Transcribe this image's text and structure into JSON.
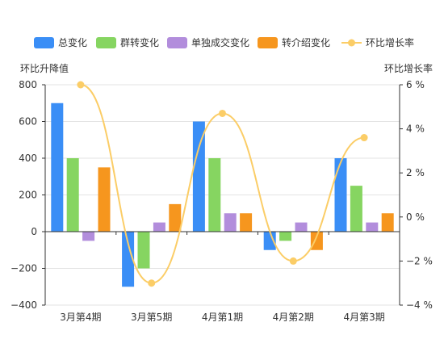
{
  "chart_data": {
    "type": "bar",
    "categories": [
      "3月第4期",
      "3月第5期",
      "4月第1期",
      "4月第2期",
      "4月第3期"
    ],
    "series": [
      {
        "name": "总变化",
        "type": "bar",
        "axis": "left",
        "color": "#3a8ef6",
        "values": [
          700,
          -300,
          600,
          -100,
          400
        ]
      },
      {
        "name": "群转变化",
        "type": "bar",
        "axis": "left",
        "color": "#86d561",
        "values": [
          400,
          -200,
          400,
          -50,
          250
        ]
      },
      {
        "name": "单独成交变化",
        "type": "bar",
        "axis": "left",
        "color": "#b28ddc",
        "values": [
          -50,
          50,
          100,
          50,
          50
        ]
      },
      {
        "name": "转介绍变化",
        "type": "bar",
        "axis": "left",
        "color": "#f6961e",
        "values": [
          350,
          150,
          100,
          -100,
          100
        ]
      },
      {
        "name": "环比增长率",
        "type": "line",
        "axis": "right",
        "color": "#fbcd67",
        "smooth": true,
        "values": [
          6,
          -3,
          4.7,
          -2,
          3.6
        ]
      }
    ],
    "ylabel": "环比升降值",
    "y2label": "环比增长率",
    "ylim": [
      -400,
      800
    ],
    "y2lim": [
      -4,
      6
    ],
    "yticks": [
      "800",
      "600",
      "400",
      "200",
      "0",
      "−200",
      "−400"
    ],
    "y2ticks": [
      "6 %",
      "4 %",
      "2 %",
      "0 %",
      "−2 %",
      "−4 %"
    ],
    "grid": true,
    "legend": "top"
  }
}
